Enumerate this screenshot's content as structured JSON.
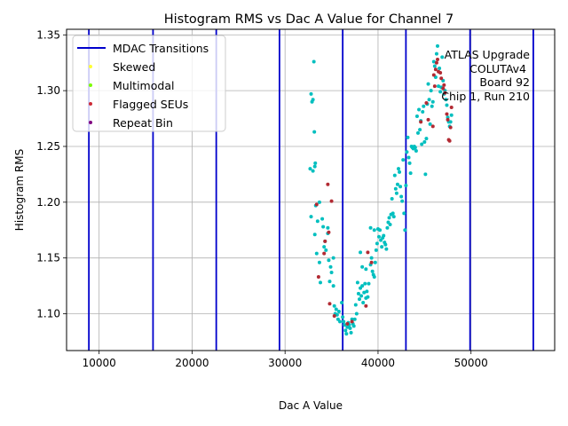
{
  "chart_data": {
    "type": "scatter",
    "title": "Histogram RMS vs Dac A Value for Channel 7",
    "xlabel": "Dac A Value",
    "ylabel": "Histogram RMS",
    "xlim": [
      6500,
      59000
    ],
    "ylim": [
      1.067,
      1.355
    ],
    "xticks": [
      10000,
      20000,
      30000,
      40000,
      50000
    ],
    "yticks": [
      1.1,
      1.15,
      1.2,
      1.25,
      1.3,
      1.35
    ],
    "xtick_labels": [
      "10000",
      "20000",
      "30000",
      "40000",
      "50000"
    ],
    "ytick_labels": [
      "1.10",
      "1.15",
      "1.20",
      "1.25",
      "1.30",
      "1.35"
    ],
    "grid": true,
    "legend_position": "top-left",
    "legend": [
      {
        "label": "MDAC Transitions",
        "kind": "line",
        "color": "#0000cc"
      },
      {
        "label": "Skewed",
        "kind": "dot",
        "color": "#ffff33"
      },
      {
        "label": "Multimodal",
        "kind": "dot",
        "color": "#7cfc00"
      },
      {
        "label": "Flagged SEUs",
        "kind": "dot",
        "color": "#cc2a36"
      },
      {
        "label": "Repeat Bin",
        "kind": "dot",
        "color": "#800080"
      }
    ],
    "annotation": [
      "ATLAS Upgrade",
      "COLUTAv4",
      "Board 92",
      "Chip 1, Run 210"
    ],
    "mdac_transitions": [
      8900,
      15800,
      22600,
      29400,
      36200,
      43000,
      49900,
      56700
    ],
    "colors": {
      "normal": "#00bfbf",
      "seu": "#b22a33",
      "transition": "#0000cc"
    },
    "series": [
      {
        "name": "Data",
        "points": [
          [
            32800,
            1.297
          ],
          [
            32900,
            1.29
          ],
          [
            33000,
            1.292
          ],
          [
            33100,
            1.326
          ],
          [
            33150,
            1.263
          ],
          [
            32700,
            1.23
          ],
          [
            33000,
            1.228
          ],
          [
            33200,
            1.232
          ],
          [
            33250,
            1.235
          ],
          [
            32800,
            1.187
          ],
          [
            33300,
            1.197
          ],
          [
            33500,
            1.183
          ],
          [
            33700,
            1.2
          ],
          [
            33200,
            1.171
          ],
          [
            34000,
            1.185
          ],
          [
            33400,
            1.154
          ],
          [
            33700,
            1.146
          ],
          [
            33800,
            1.128
          ],
          [
            34100,
            1.178
          ],
          [
            34300,
            1.165
          ],
          [
            34200,
            1.16
          ],
          [
            34600,
            1.172
          ],
          [
            34400,
            1.157
          ],
          [
            34700,
            1.148
          ],
          [
            34900,
            1.142
          ],
          [
            35000,
            1.137
          ],
          [
            35200,
            1.125
          ],
          [
            34600,
            1.177
          ],
          [
            35200,
            1.15
          ],
          [
            34800,
            1.129
          ],
          [
            35300,
            1.107
          ],
          [
            35400,
            1.1
          ],
          [
            35500,
            1.104
          ],
          [
            35600,
            1.099
          ],
          [
            35700,
            1.095
          ],
          [
            35800,
            1.102
          ],
          [
            35900,
            1.093
          ],
          [
            36100,
            1.11
          ],
          [
            36200,
            1.097
          ],
          [
            36300,
            1.093
          ],
          [
            36400,
            1.09
          ],
          [
            36500,
            1.085
          ],
          [
            36600,
            1.082
          ],
          [
            36700,
            1.088
          ],
          [
            36800,
            1.092
          ],
          [
            36900,
            1.09
          ],
          [
            37000,
            1.087
          ],
          [
            37100,
            1.083
          ],
          [
            37200,
            1.095
          ],
          [
            37300,
            1.091
          ],
          [
            37400,
            1.089
          ],
          [
            37500,
            1.095
          ],
          [
            37600,
            1.108
          ],
          [
            37700,
            1.1
          ],
          [
            37800,
            1.128
          ],
          [
            37900,
            1.118
          ],
          [
            38000,
            1.113
          ],
          [
            38100,
            1.123
          ],
          [
            38200,
            1.116
          ],
          [
            38300,
            1.125
          ],
          [
            38400,
            1.11
          ],
          [
            38500,
            1.119
          ],
          [
            38600,
            1.127
          ],
          [
            38700,
            1.114
          ],
          [
            38800,
            1.12
          ],
          [
            38900,
            1.115
          ],
          [
            39000,
            1.127
          ],
          [
            38100,
            1.155
          ],
          [
            38300,
            1.142
          ],
          [
            38700,
            1.14
          ],
          [
            39200,
            1.144
          ],
          [
            39300,
            1.15
          ],
          [
            39400,
            1.138
          ],
          [
            39500,
            1.135
          ],
          [
            39600,
            1.133
          ],
          [
            39700,
            1.146
          ],
          [
            39800,
            1.157
          ],
          [
            39900,
            1.163
          ],
          [
            40000,
            1.176
          ],
          [
            39200,
            1.177
          ],
          [
            39600,
            1.175
          ],
          [
            40100,
            1.169
          ],
          [
            40200,
            1.175
          ],
          [
            40300,
            1.166
          ],
          [
            40400,
            1.16
          ],
          [
            40500,
            1.168
          ],
          [
            40600,
            1.17
          ],
          [
            40700,
            1.164
          ],
          [
            40800,
            1.162
          ],
          [
            40900,
            1.158
          ],
          [
            41000,
            1.177
          ],
          [
            41100,
            1.182
          ],
          [
            41200,
            1.186
          ],
          [
            41300,
            1.18
          ],
          [
            41400,
            1.189
          ],
          [
            41500,
            1.203
          ],
          [
            41600,
            1.19
          ],
          [
            41700,
            1.187
          ],
          [
            41800,
            1.224
          ],
          [
            41900,
            1.212
          ],
          [
            42000,
            1.208
          ],
          [
            42100,
            1.216
          ],
          [
            42200,
            1.23
          ],
          [
            42300,
            1.227
          ],
          [
            42400,
            1.214
          ],
          [
            42500,
            1.205
          ],
          [
            42600,
            1.201
          ],
          [
            42700,
            1.238
          ],
          [
            42800,
            1.19
          ],
          [
            42900,
            1.175
          ],
          [
            43000,
            1.215
          ],
          [
            43100,
            1.245
          ],
          [
            43200,
            1.258
          ],
          [
            43300,
            1.24
          ],
          [
            43400,
            1.235
          ],
          [
            43500,
            1.226
          ],
          [
            43600,
            1.25
          ],
          [
            43700,
            1.249
          ],
          [
            43800,
            1.248
          ],
          [
            43900,
            1.25
          ],
          [
            44000,
            1.249
          ],
          [
            44100,
            1.246
          ],
          [
            44200,
            1.277
          ],
          [
            44300,
            1.262
          ],
          [
            44400,
            1.283
          ],
          [
            44500,
            1.265
          ],
          [
            44600,
            1.273
          ],
          [
            44700,
            1.252
          ],
          [
            44800,
            1.281
          ],
          [
            44900,
            1.286
          ],
          [
            45000,
            1.254
          ],
          [
            45100,
            1.225
          ],
          [
            45200,
            1.257
          ],
          [
            45300,
            1.288
          ],
          [
            45400,
            1.306
          ],
          [
            45500,
            1.292
          ],
          [
            45600,
            1.27
          ],
          [
            45700,
            1.3
          ],
          [
            45800,
            1.286
          ],
          [
            45900,
            1.29
          ],
          [
            46000,
            1.326
          ],
          [
            46100,
            1.322
          ],
          [
            46200,
            1.312
          ],
          [
            46300,
            1.333
          ],
          [
            46400,
            1.34
          ],
          [
            46500,
            1.304
          ],
          [
            46600,
            1.32
          ],
          [
            46700,
            1.299
          ],
          [
            46800,
            1.303
          ],
          [
            46900,
            1.33
          ],
          [
            47000,
            1.309
          ],
          [
            47100,
            1.297
          ],
          [
            47200,
            1.3
          ],
          [
            47300,
            1.292
          ],
          [
            47400,
            1.287
          ],
          [
            47500,
            1.276
          ],
          [
            47600,
            1.272
          ],
          [
            47700,
            1.268
          ],
          [
            47800,
            1.272
          ],
          [
            47900,
            1.278
          ]
        ]
      },
      {
        "name": "Flagged SEUs",
        "points": [
          [
            33600,
            1.133
          ],
          [
            33400,
            1.198
          ],
          [
            34200,
            1.154
          ],
          [
            34300,
            1.165
          ],
          [
            34600,
            1.216
          ],
          [
            34700,
            1.173
          ],
          [
            35000,
            1.201
          ],
          [
            34800,
            1.109
          ],
          [
            35300,
            1.098
          ],
          [
            36700,
            1.091
          ],
          [
            37200,
            1.093
          ],
          [
            38700,
            1.107
          ],
          [
            38900,
            1.155
          ],
          [
            39300,
            1.146
          ],
          [
            44600,
            1.272
          ],
          [
            45200,
            1.289
          ],
          [
            45400,
            1.274
          ],
          [
            45900,
            1.268
          ],
          [
            46000,
            1.314
          ],
          [
            46100,
            1.304
          ],
          [
            46200,
            1.319
          ],
          [
            46300,
            1.325
          ],
          [
            46400,
            1.328
          ],
          [
            46500,
            1.317
          ],
          [
            46700,
            1.316
          ],
          [
            46800,
            1.311
          ],
          [
            47000,
            1.302
          ],
          [
            47100,
            1.305
          ],
          [
            47200,
            1.298
          ],
          [
            47400,
            1.279
          ],
          [
            47500,
            1.274
          ],
          [
            47600,
            1.256
          ],
          [
            47700,
            1.255
          ],
          [
            47800,
            1.267
          ],
          [
            47900,
            1.285
          ]
        ]
      }
    ]
  }
}
